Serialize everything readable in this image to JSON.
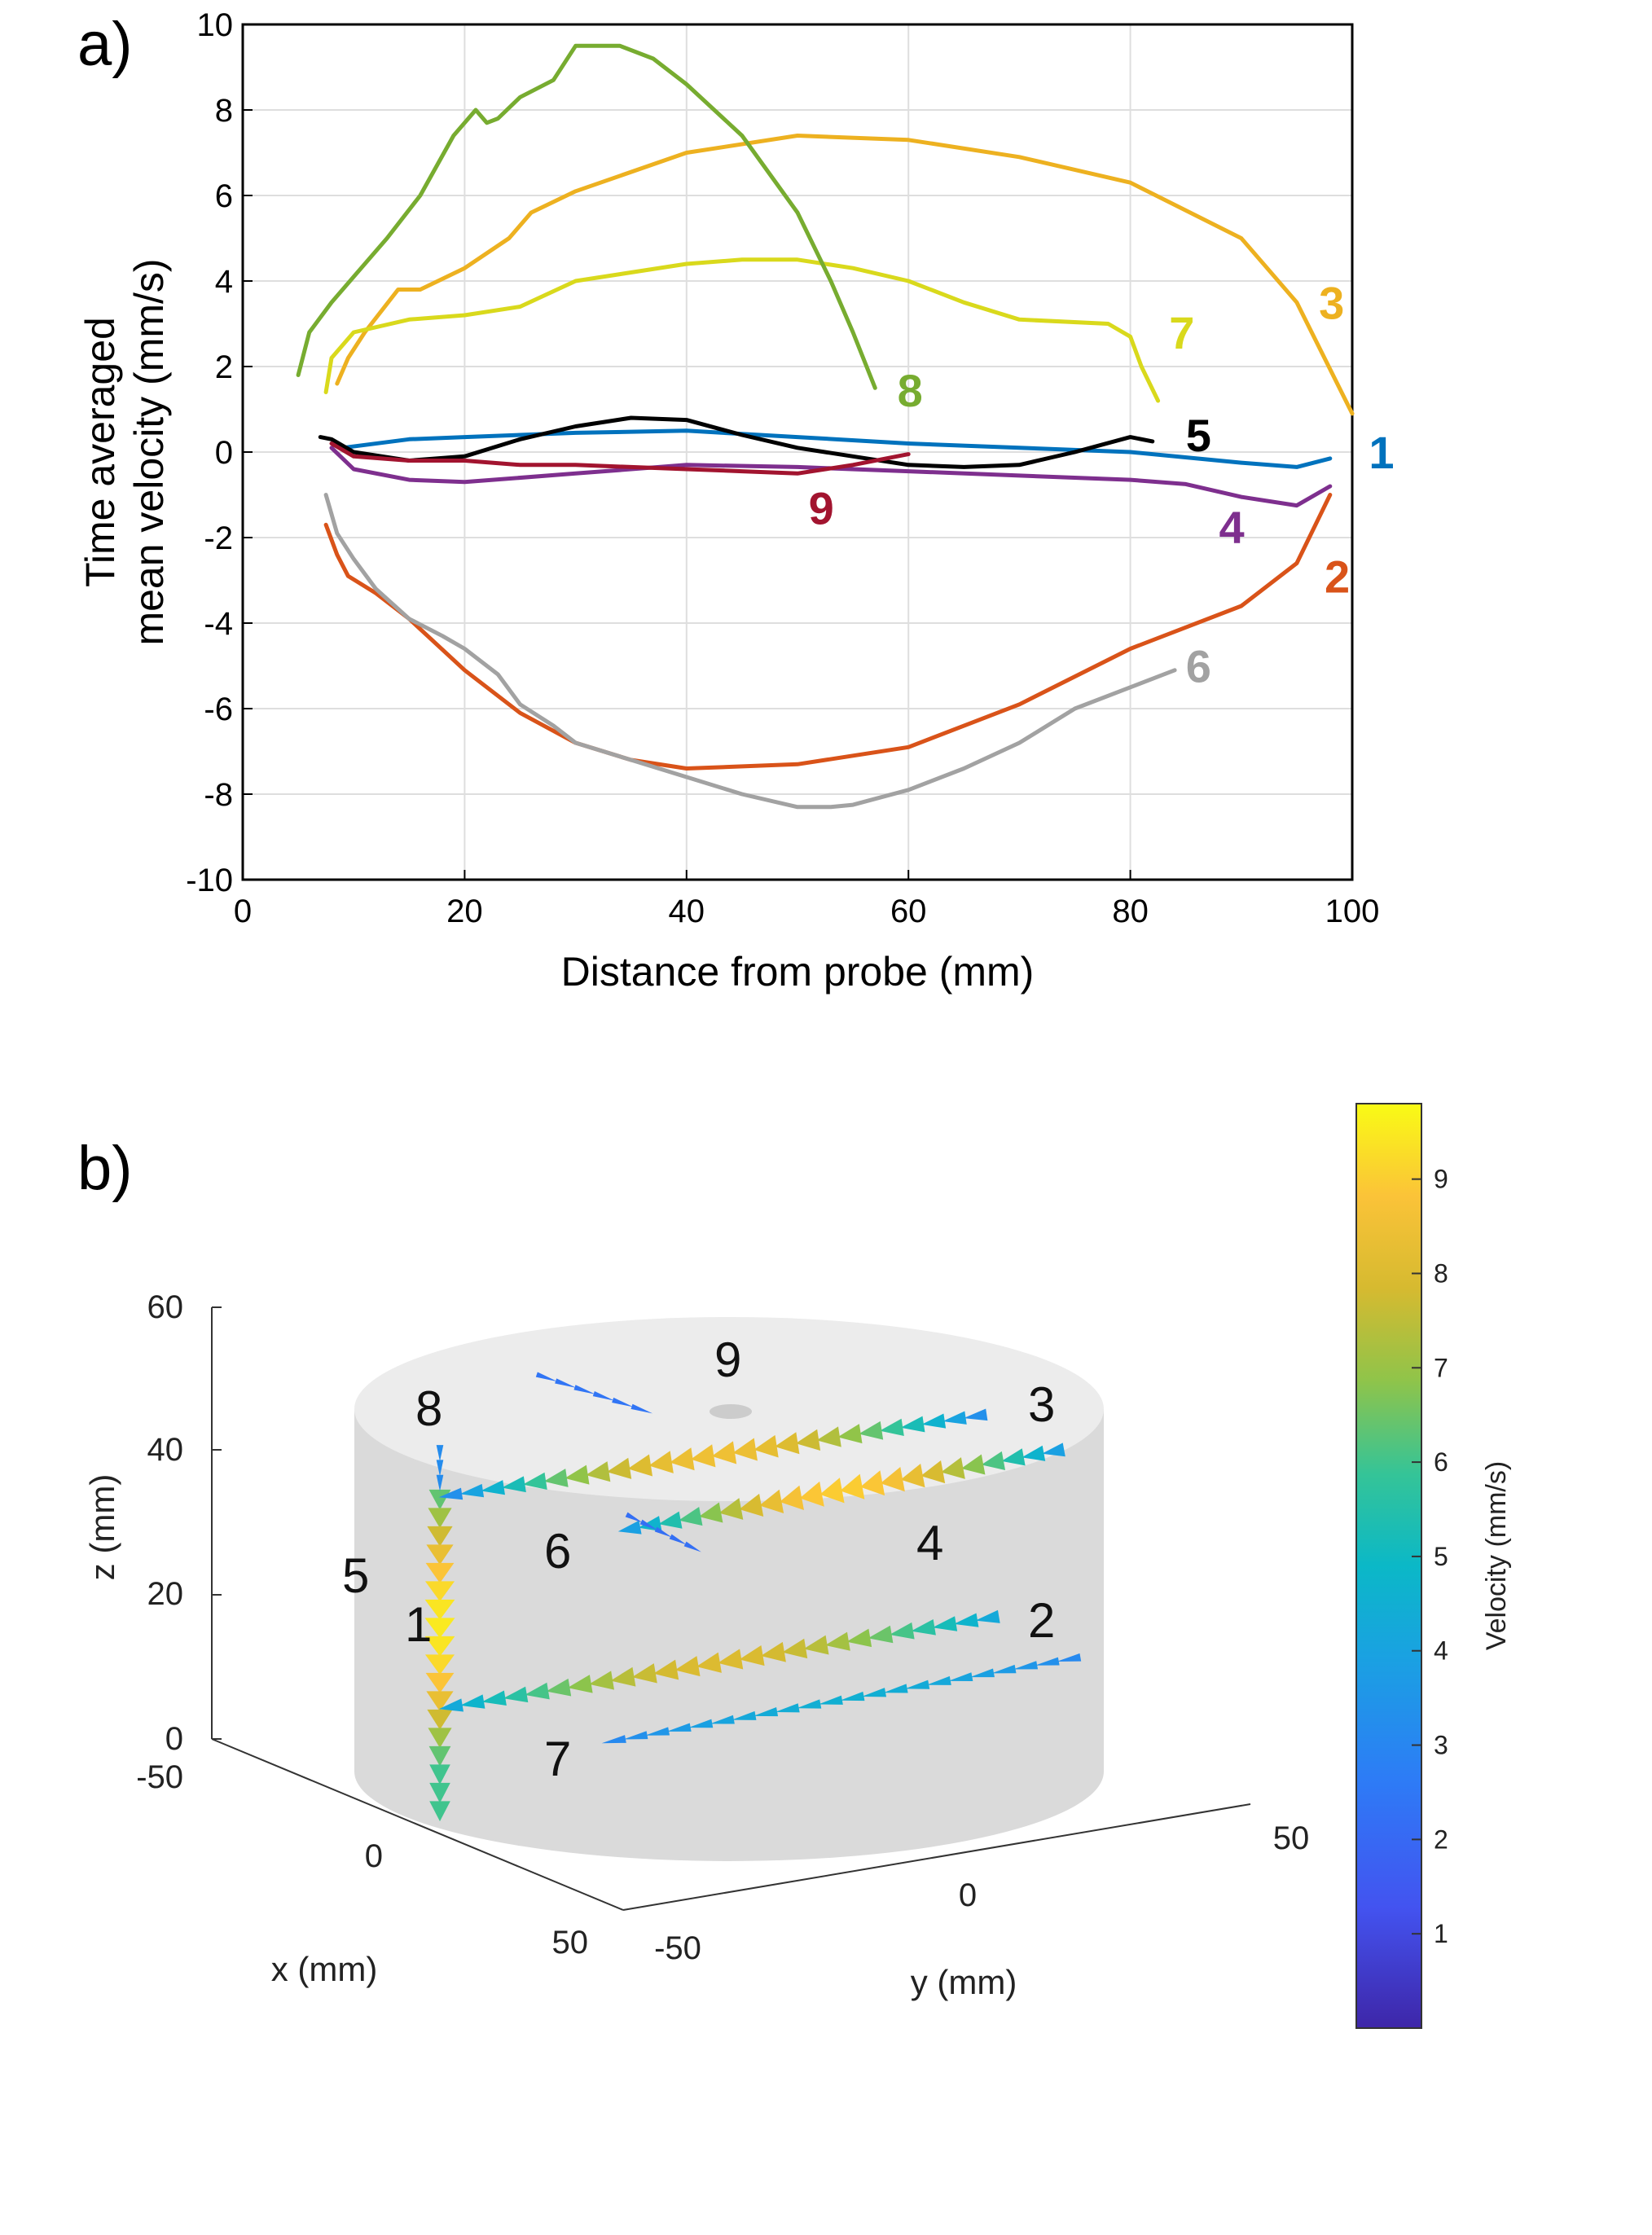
{
  "panel_a": {
    "label": "a)",
    "chart_data": {
      "type": "line",
      "title": "",
      "xlabel": "Distance from probe (mm)",
      "ylabel_line1": "Time averaged",
      "ylabel_line2": "mean velocity (mm/s)",
      "xlim": [
        0,
        100
      ],
      "ylim": [
        -10,
        10
      ],
      "xticks": [
        0,
        20,
        40,
        60,
        80,
        100
      ],
      "yticks": [
        -10,
        -8,
        -6,
        -4,
        -2,
        0,
        2,
        4,
        6,
        8,
        10
      ],
      "grid": true,
      "series": [
        {
          "name": "1",
          "color": "#0072BD",
          "label_at": [
            101.5,
            0
          ],
          "x": [
            9,
            15,
            20,
            30,
            40,
            50,
            60,
            70,
            80,
            90,
            95,
            98
          ],
          "y": [
            0.1,
            0.3,
            0.35,
            0.45,
            0.5,
            0.35,
            0.2,
            0.1,
            0,
            -0.25,
            -0.35,
            -0.15
          ]
        },
        {
          "name": "2",
          "color": "#D95319",
          "label_at": [
            97.5,
            -2.9
          ],
          "x": [
            7.5,
            8.5,
            9.5,
            12,
            15,
            20,
            25,
            30,
            35,
            40,
            50,
            60,
            70,
            80,
            90,
            95,
            98
          ],
          "y": [
            -1.7,
            -2.4,
            -2.9,
            -3.3,
            -3.9,
            -5.1,
            -6.1,
            -6.8,
            -7.2,
            -7.4,
            -7.3,
            -6.9,
            -5.9,
            -4.6,
            -3.6,
            -2.6,
            -1.0
          ]
        },
        {
          "name": "3",
          "color": "#EDB120",
          "label_at": [
            97,
            3.5
          ],
          "x": [
            8.5,
            9.5,
            11,
            14,
            16,
            20,
            24,
            26,
            30,
            40,
            50,
            60,
            70,
            80,
            90,
            95,
            100
          ],
          "y": [
            1.6,
            2.2,
            2.8,
            3.8,
            3.8,
            4.3,
            5.0,
            5.6,
            6.1,
            7.0,
            7.4,
            7.3,
            6.9,
            6.3,
            5.0,
            3.5,
            0.9
          ]
        },
        {
          "name": "4",
          "color": "#7E2F8E",
          "label_at": [
            88,
            -1.75
          ],
          "x": [
            8,
            10,
            15,
            20,
            30,
            40,
            50,
            60,
            70,
            80,
            85,
            90,
            95,
            98
          ],
          "y": [
            0.1,
            -0.4,
            -0.65,
            -0.7,
            -0.5,
            -0.3,
            -0.35,
            -0.45,
            -0.55,
            -0.65,
            -0.75,
            -1.05,
            -1.25,
            -0.8
          ]
        },
        {
          "name": "5",
          "color": "#000000",
          "label_at": [
            85,
            0.4
          ],
          "x": [
            7,
            8,
            10,
            15,
            20,
            25,
            30,
            35,
            40,
            45,
            50,
            55,
            60,
            65,
            70,
            75,
            80,
            82
          ],
          "y": [
            0.35,
            0.3,
            0.0,
            -0.2,
            -0.1,
            0.3,
            0.6,
            0.8,
            0.75,
            0.4,
            0.1,
            -0.1,
            -0.3,
            -0.35,
            -0.3,
            0.0,
            0.35,
            0.25
          ]
        },
        {
          "name": "6",
          "color": "#A2A2A2",
          "label_at": [
            85,
            -5.0
          ],
          "x": [
            7.5,
            8.5,
            10,
            12,
            15,
            18,
            20,
            23,
            25,
            28,
            30,
            35,
            40,
            45,
            50,
            53,
            55,
            60,
            65,
            70,
            75,
            80,
            84
          ],
          "y": [
            -1.0,
            -1.9,
            -2.5,
            -3.2,
            -3.9,
            -4.3,
            -4.6,
            -5.2,
            -5.9,
            -6.4,
            -6.8,
            -7.2,
            -7.6,
            -8.0,
            -8.3,
            -8.3,
            -8.25,
            -7.9,
            -7.4,
            -6.8,
            -6.0,
            -5.5,
            -5.1
          ]
        },
        {
          "name": "7",
          "color": "#D9D91C",
          "label_at": [
            83.5,
            2.8
          ],
          "x": [
            7.5,
            8,
            10,
            15,
            20,
            25,
            30,
            40,
            45,
            50,
            55,
            60,
            65,
            70,
            78,
            80,
            81,
            82.5
          ],
          "y": [
            1.4,
            2.2,
            2.8,
            3.1,
            3.2,
            3.4,
            4.0,
            4.4,
            4.5,
            4.5,
            4.3,
            4.0,
            3.5,
            3.1,
            3.0,
            2.7,
            2.0,
            1.2
          ]
        },
        {
          "name": "8",
          "color": "#77AC30",
          "label_at": [
            59,
            1.45
          ],
          "x": [
            5,
            6,
            8,
            10,
            13,
            16,
            19,
            21,
            22,
            23,
            25,
            28,
            30,
            34,
            37,
            40,
            45,
            50,
            53,
            55,
            57
          ],
          "y": [
            1.8,
            2.8,
            3.5,
            4.1,
            5.0,
            6.0,
            7.4,
            8.0,
            7.7,
            7.8,
            8.3,
            8.7,
            9.5,
            9.5,
            9.2,
            8.6,
            7.4,
            5.6,
            4.0,
            2.8,
            1.5
          ]
        },
        {
          "name": "9",
          "color": "#A2142F",
          "label_at": [
            51,
            -1.3
          ],
          "x": [
            8,
            10,
            15,
            20,
            25,
            30,
            35,
            40,
            45,
            50,
            55,
            60
          ],
          "y": [
            0.2,
            -0.1,
            -0.2,
            -0.2,
            -0.3,
            -0.3,
            -0.35,
            -0.4,
            -0.45,
            -0.5,
            -0.3,
            -0.05
          ]
        }
      ]
    }
  },
  "panel_b": {
    "label": "b)",
    "chart_data": {
      "type": "3d-quiver",
      "title": "",
      "xlabel": "x (mm)",
      "ylabel": "y (mm)",
      "zlabel": "z (mm)",
      "xticks": [
        -50,
        0,
        50
      ],
      "yticks": [
        -50,
        0,
        50
      ],
      "zticks": [
        0,
        20,
        40,
        60
      ],
      "colorbar": {
        "label": "Velocity (mm/s)",
        "ticks": [
          1,
          2,
          3,
          4,
          5,
          6,
          7,
          8,
          9
        ],
        "range": [
          0,
          9.8
        ]
      },
      "probe_labels": [
        "1",
        "2",
        "3",
        "4",
        "5",
        "6",
        "7",
        "8",
        "9"
      ]
    }
  }
}
